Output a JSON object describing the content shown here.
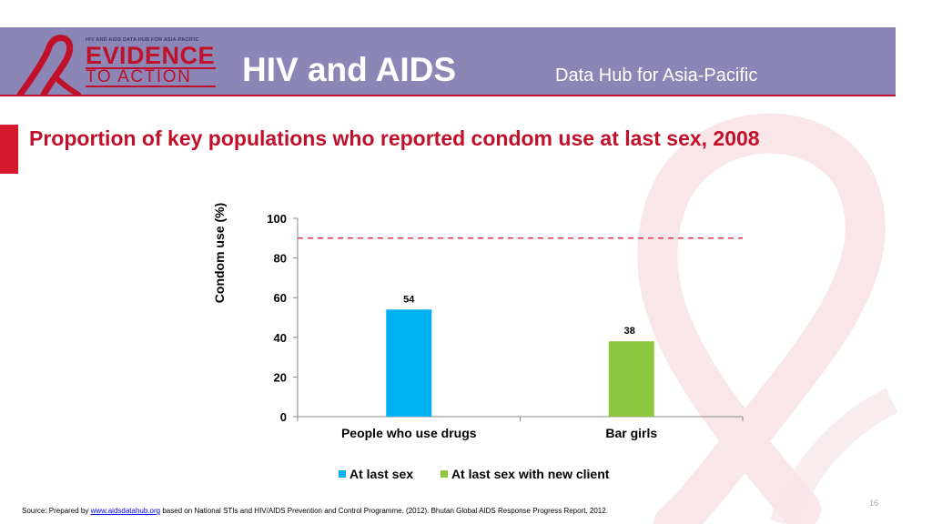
{
  "header": {
    "logo_small": "HIV AND AIDS DATA HUB FOR ASIA-PACIFIC",
    "logo_main": "EVIDENCE",
    "logo_sub": "TO ACTION",
    "title": "HIV and AIDS",
    "subtitle": "Data Hub for Asia-Pacific"
  },
  "slide": {
    "title": "Proportion of key populations who reported condom use at last sex, 2008",
    "page_number": "16"
  },
  "source": {
    "prefix": "Source: Prepared by ",
    "link_text": "www.aidsdatahub.org",
    "suffix": " based on National STIs and HIV/AIDS Prevention and Control Programme. (2012). Bhutan Global AIDS Response Progress Report, 2012."
  },
  "colors": {
    "header_band": "#8b86b5",
    "title_red": "#c0102a",
    "series_blue": "#00b0f0",
    "series_green": "#8dc63f",
    "target_line": "#e8344a"
  },
  "chart_data": {
    "type": "bar",
    "categories": [
      "People who use drugs",
      "Bar girls"
    ],
    "series": [
      {
        "name": "At last sex",
        "color": "#00b0f0",
        "values": [
          54,
          null
        ]
      },
      {
        "name": "At last sex with new client",
        "color": "#8dc63f",
        "values": [
          null,
          38
        ]
      }
    ],
    "ylabel": "Condom use (%)",
    "ylim": [
      0,
      100
    ],
    "yticks": [
      0,
      20,
      40,
      60,
      80,
      100
    ],
    "reference_line": {
      "y": 90,
      "style": "dashed"
    },
    "data_labels": true,
    "legend": "bottom",
    "grid": false
  }
}
